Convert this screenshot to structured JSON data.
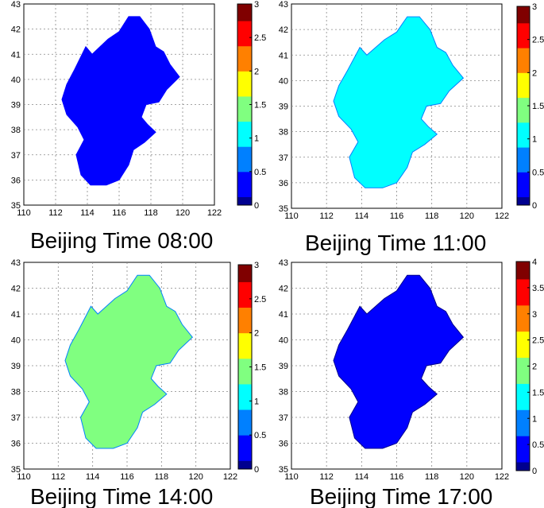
{
  "colorscale": [
    "#00008f",
    "#0000ff",
    "#0080ff",
    "#00ffff",
    "#80ff80",
    "#ffff00",
    "#ff8000",
    "#ff0000",
    "#800000"
  ],
  "chart_data": [
    {
      "type": "heatmap",
      "caption": "Beijing Time 08:00",
      "xlim": [
        110,
        122
      ],
      "ylim": [
        35,
        43
      ],
      "xticks": [
        "110",
        "112",
        "114",
        "116",
        "118",
        "120",
        "122"
      ],
      "yticks": [
        "35",
        "36",
        "37",
        "38",
        "39",
        "40",
        "41",
        "42",
        "43"
      ],
      "grid": true,
      "colorbar": {
        "min": 0,
        "max": 3,
        "ticks": [
          "0",
          "0.5",
          "1",
          "1.5",
          "2",
          "2.5",
          "3"
        ]
      },
      "field_level": 0.45
    },
    {
      "type": "heatmap",
      "caption": "Beijing Time 11:00",
      "xlim": [
        110,
        122
      ],
      "ylim": [
        35,
        43
      ],
      "xticks": [
        "110",
        "112",
        "114",
        "116",
        "118",
        "120",
        "122"
      ],
      "yticks": [
        "35",
        "36",
        "37",
        "38",
        "39",
        "40",
        "41",
        "42",
        "43"
      ],
      "grid": true,
      "colorbar": {
        "min": 0,
        "max": 3,
        "ticks": [
          "0",
          "0.5",
          "1",
          "1.5",
          "2",
          "2.5",
          "3"
        ]
      },
      "field_level": 1.3
    },
    {
      "type": "heatmap",
      "caption": "Beijing Time 14:00",
      "xlim": [
        110,
        122
      ],
      "ylim": [
        35,
        43
      ],
      "xticks": [
        "110",
        "112",
        "114",
        "116",
        "118",
        "120",
        "122"
      ],
      "yticks": [
        "35",
        "36",
        "37",
        "38",
        "39",
        "40",
        "41",
        "42",
        "43"
      ],
      "grid": true,
      "colorbar": {
        "min": 0,
        "max": 3,
        "ticks": [
          "0",
          "0.5",
          "1",
          "1.5",
          "2",
          "2.5",
          "3"
        ]
      },
      "field_level": 1.4
    },
    {
      "type": "heatmap",
      "caption": "Beijing Time 17:00",
      "xlim": [
        110,
        122
      ],
      "ylim": [
        35,
        43
      ],
      "xticks": [
        "110",
        "112",
        "114",
        "116",
        "118",
        "120",
        "122"
      ],
      "yticks": [
        "35",
        "36",
        "37",
        "38",
        "39",
        "40",
        "41",
        "42",
        "43"
      ],
      "grid": true,
      "colorbar": {
        "min": 0,
        "max": 4,
        "ticks": [
          "0",
          "0.5",
          "1",
          "1.5",
          "2",
          "2.5",
          "3",
          "3.5",
          "4"
        ]
      },
      "field_level": 0.3
    }
  ]
}
